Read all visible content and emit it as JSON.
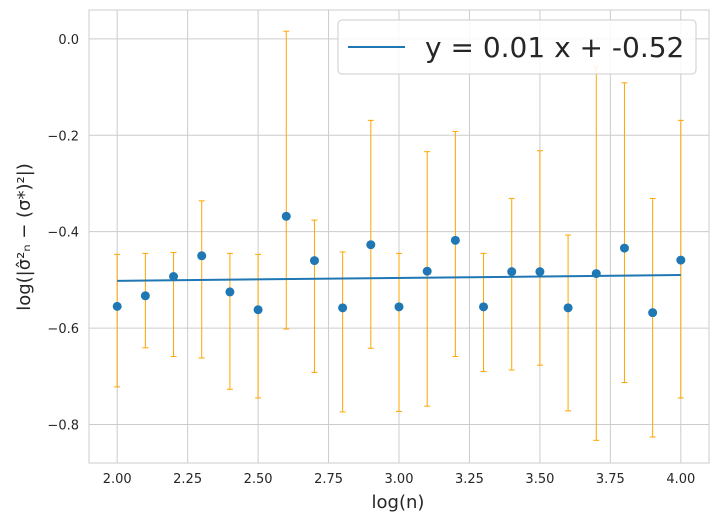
{
  "chart_data": {
    "type": "scatter",
    "xlabel": "log(n)",
    "ylabel": "log(|σ̂²ₙ − (σ*)²|)",
    "xlim": [
      1.9,
      4.1
    ],
    "ylim": [
      -0.88,
      0.06
    ],
    "xticks": [
      "2.00",
      "2.25",
      "2.50",
      "2.75",
      "3.00",
      "3.25",
      "3.50",
      "3.75",
      "4.00"
    ],
    "yticks": [
      "0.0",
      "−0.2",
      "−0.4",
      "−0.6",
      "−0.8"
    ],
    "grid": true,
    "legend_position": "top-right",
    "fit_line": {
      "label": "y = 0.01 x + -0.52",
      "slope": 0.006,
      "intercept": -0.514,
      "x_range": [
        2.0,
        4.0
      ],
      "color": "#1f77b4"
    },
    "points": {
      "color": "#1f77b4",
      "errorbar_color": "#ffa500",
      "x": [
        2.0,
        2.1,
        2.2,
        2.3,
        2.4,
        2.5,
        2.6,
        2.7,
        2.8,
        2.9,
        3.0,
        3.1,
        3.2,
        3.3,
        3.4,
        3.5,
        3.6,
        3.7,
        3.8,
        3.9,
        4.0
      ],
      "y": [
        -0.555,
        -0.533,
        -0.493,
        -0.45,
        -0.525,
        -0.562,
        -0.368,
        -0.46,
        -0.558,
        -0.427,
        -0.556,
        -0.482,
        -0.418,
        -0.556,
        -0.483,
        -0.483,
        -0.558,
        -0.487,
        -0.434,
        -0.568,
        -0.459
      ],
      "err_low": [
        -0.722,
        -0.641,
        -0.659,
        -0.662,
        -0.727,
        -0.745,
        -0.602,
        -0.692,
        -0.774,
        -0.642,
        -0.773,
        -0.762,
        -0.659,
        -0.69,
        -0.687,
        -0.677,
        -0.772,
        -0.833,
        -0.713,
        -0.826,
        -0.745
      ],
      "err_high": [
        -0.447,
        -0.445,
        -0.443,
        -0.336,
        -0.445,
        -0.447,
        0.016,
        -0.376,
        -0.442,
        -0.169,
        -0.445,
        -0.234,
        -0.192,
        -0.445,
        -0.331,
        -0.232,
        -0.407,
        -0.058,
        -0.091,
        -0.331,
        -0.169
      ]
    }
  }
}
